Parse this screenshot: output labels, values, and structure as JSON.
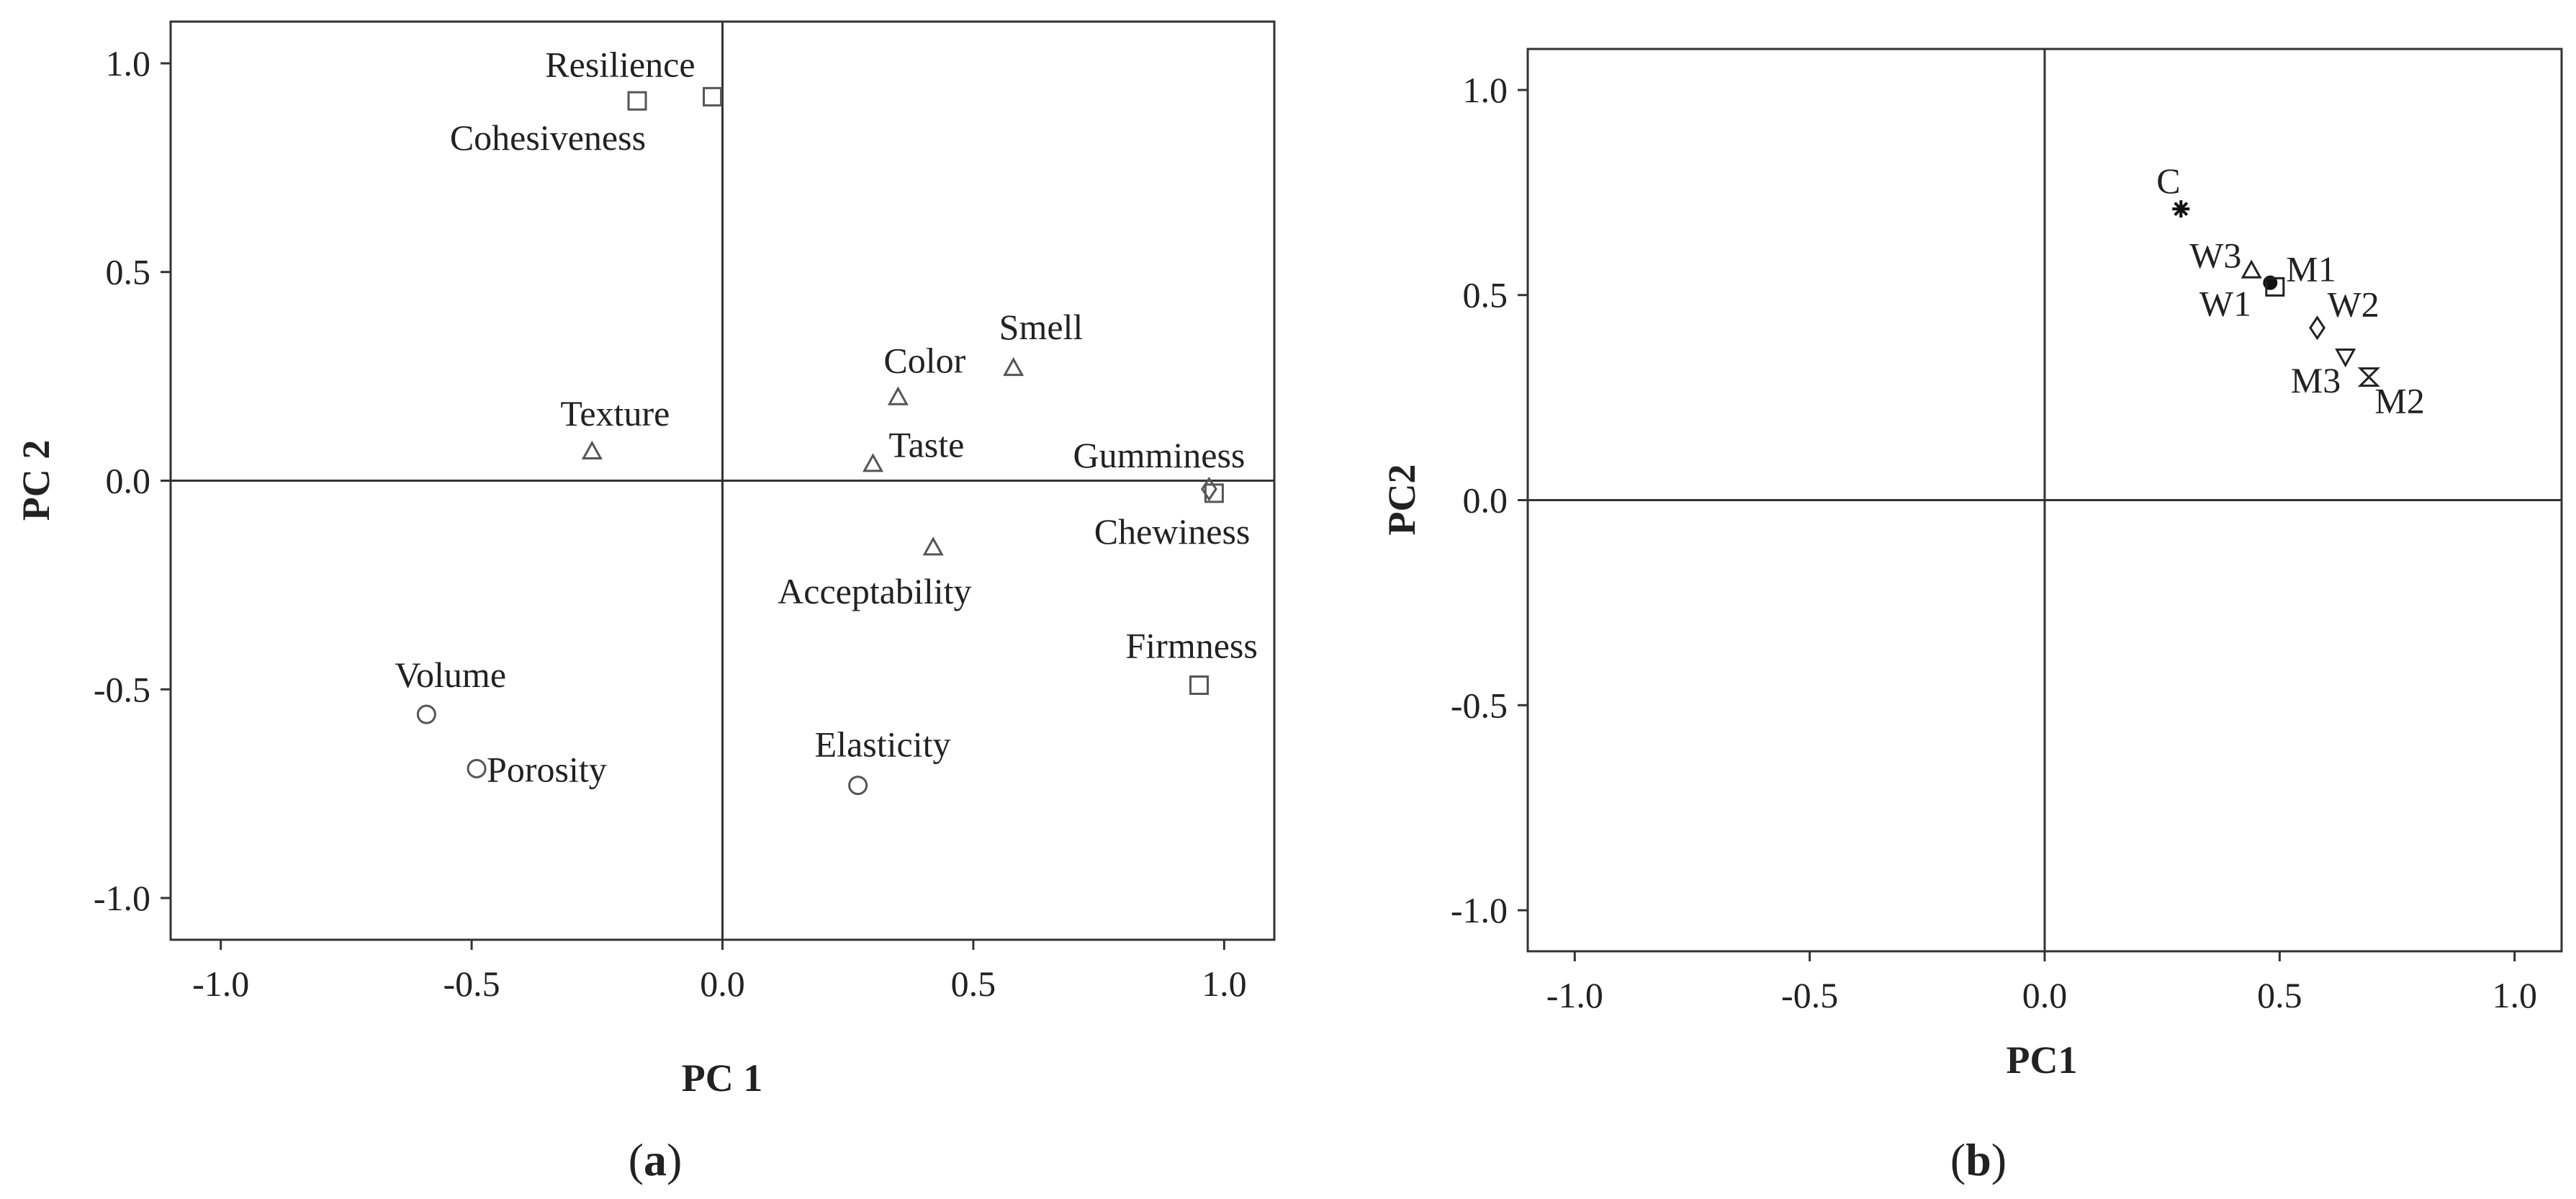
{
  "chart_data": [
    {
      "type": "scatter",
      "panel": "(a)",
      "panel_letter": "a",
      "xlabel": "PC 1",
      "ylabel": "PC 2",
      "xlim": [
        -1.1,
        1.1
      ],
      "ylim": [
        -1.1,
        1.1
      ],
      "xticks": [
        "-1.0",
        "-0.5",
        "0.0",
        "0.5",
        "1.0"
      ],
      "yticks": [
        "1.0",
        "0.5",
        "0.0",
        "-0.5",
        "-1.0"
      ],
      "reference_lines": {
        "x": 0,
        "y": 0
      },
      "points": [
        {
          "label": "Resilience",
          "x": -0.02,
          "y": 0.92,
          "marker": "square"
        },
        {
          "label": "Cohesiveness",
          "x": -0.17,
          "y": 0.91,
          "marker": "square"
        },
        {
          "label": "Smell",
          "x": 0.58,
          "y": 0.27,
          "marker": "triangle"
        },
        {
          "label": "Color",
          "x": 0.35,
          "y": 0.2,
          "marker": "triangle"
        },
        {
          "label": "Texture",
          "x": -0.26,
          "y": 0.07,
          "marker": "triangle"
        },
        {
          "label": "Taste",
          "x": 0.3,
          "y": 0.04,
          "marker": "triangle"
        },
        {
          "label": "Gumminess",
          "x": 0.97,
          "y": -0.02,
          "marker": "diamond"
        },
        {
          "label": "Chewiness",
          "x": 0.98,
          "y": -0.03,
          "marker": "square"
        },
        {
          "label": "Acceptability",
          "x": 0.42,
          "y": -0.16,
          "marker": "triangle"
        },
        {
          "label": "Firmness",
          "x": 0.95,
          "y": -0.49,
          "marker": "square"
        },
        {
          "label": "Volume",
          "x": -0.59,
          "y": -0.56,
          "marker": "circle"
        },
        {
          "label": "Porosity",
          "x": -0.49,
          "y": -0.69,
          "marker": "circle"
        },
        {
          "label": "Elasticity",
          "x": 0.27,
          "y": -0.73,
          "marker": "circle"
        }
      ]
    },
    {
      "type": "scatter",
      "panel": "(b)",
      "panel_letter": "b",
      "xlabel": "PC1",
      "ylabel": "PC2",
      "xlim": [
        -1.1,
        1.1
      ],
      "ylim": [
        -1.1,
        1.1
      ],
      "xticks": [
        "-1.0",
        "-0.5",
        "0.0",
        "0.5",
        "1.0"
      ],
      "yticks": [
        "1.0",
        "0.5",
        "0.0",
        "-0.5",
        "-1.0"
      ],
      "reference_lines": {
        "x": 0,
        "y": 0
      },
      "points": [
        {
          "label": "C",
          "x": 0.29,
          "y": 0.71,
          "marker": "asterisk"
        },
        {
          "label": "W3",
          "x": 0.44,
          "y": 0.56,
          "marker": "triangle"
        },
        {
          "label": "M1",
          "x": 0.48,
          "y": 0.53,
          "marker": "filled-circle"
        },
        {
          "label": "W1",
          "x": 0.49,
          "y": 0.52,
          "marker": "square"
        },
        {
          "label": "W2",
          "x": 0.58,
          "y": 0.42,
          "marker": "diamond"
        },
        {
          "label": "M3",
          "x": 0.64,
          "y": 0.35,
          "marker": "inverted-triangle"
        },
        {
          "label": "M2",
          "x": 0.69,
          "y": 0.3,
          "marker": "hourglass"
        }
      ]
    }
  ]
}
